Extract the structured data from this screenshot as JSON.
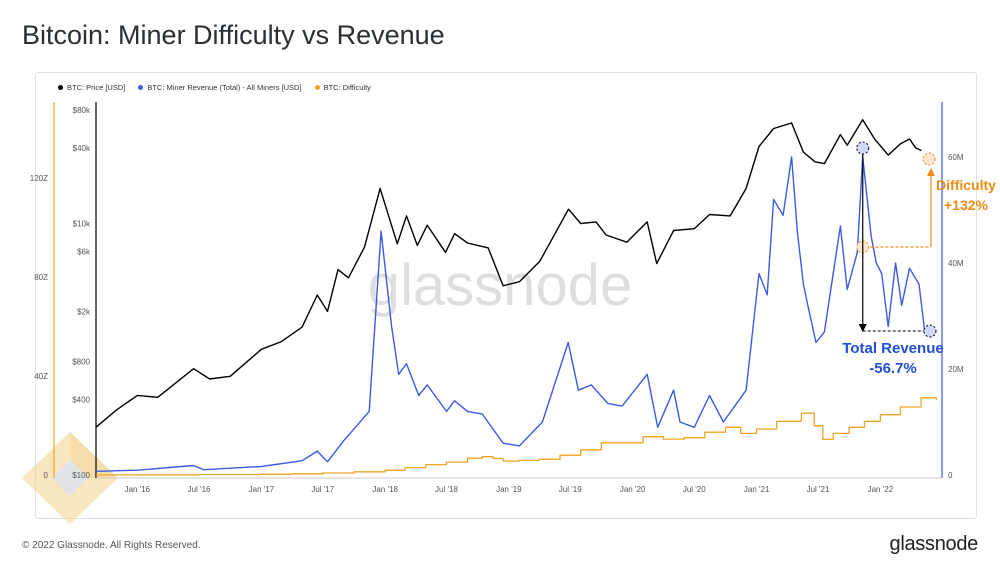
{
  "page": {
    "title": "Bitcoin: Miner Difficulty vs Revenue",
    "copyright": "© 2022 Glassnode. All Rights Reserved.",
    "logo": "glassnode",
    "watermark": "glassnode"
  },
  "legend": [
    {
      "label": "BTC: Price [USD]",
      "color": "#000000"
    },
    {
      "label": "BTC: Miner Revenue (Total) - All Miners [USD]",
      "color": "#3b5be0"
    },
    {
      "label": "BTC: Difficulty",
      "color": "#f0a524"
    }
  ],
  "colors": {
    "price": "#000000",
    "revenue": "#3b5be0",
    "difficulty": "#f0a524",
    "annotation_orange": "#f08a16",
    "annotation_blue": "#1f4fd8"
  },
  "annotations": {
    "difficulty_label": "Difficulty",
    "difficulty_change": "+132%",
    "revenue_label": "Total Revenue",
    "revenue_change": "-56.7%"
  },
  "chart_data": {
    "type": "line",
    "x_ticks": [
      "Jan '16",
      "Jul '16",
      "Jan '17",
      "Jul '17",
      "Jan '18",
      "Jul '18",
      "Jan '19",
      "Jul '19",
      "Jan '20",
      "Jul '20",
      "Jan '21",
      "Jul '21",
      "Jan '22"
    ],
    "x_range": [
      "2015-09-01",
      "2022-06-20"
    ],
    "y_left_difficulty": {
      "ticks": [
        "0",
        "40Z",
        "80Z",
        "120Z"
      ],
      "tick_values": [
        0,
        40,
        80,
        120
      ],
      "unit": "Z",
      "range": [
        0,
        150
      ]
    },
    "y_left_price": {
      "ticks": [
        "$100",
        "$400",
        "$800",
        "$2k",
        "$6k",
        "$10k",
        "$40k",
        "$80k"
      ],
      "tick_values": [
        100,
        400,
        800,
        2000,
        6000,
        10000,
        40000,
        80000
      ],
      "scale": "log",
      "range": [
        100,
        80000
      ]
    },
    "y_right_revenue": {
      "ticks": [
        "0",
        "20M",
        "40M",
        "60M"
      ],
      "tick_values": [
        0,
        20,
        40,
        60
      ],
      "unit": "M",
      "range": [
        0,
        70
      ]
    },
    "series": [
      {
        "name": "BTC: Price [USD]",
        "axis": "price",
        "points": [
          [
            "2015-09-01",
            240
          ],
          [
            "2015-11-01",
            330
          ],
          [
            "2016-01-01",
            430
          ],
          [
            "2016-03-01",
            415
          ],
          [
            "2016-06-15",
            700
          ],
          [
            "2016-08-01",
            580
          ],
          [
            "2016-10-01",
            610
          ],
          [
            "2017-01-01",
            1000
          ],
          [
            "2017-03-01",
            1150
          ],
          [
            "2017-05-01",
            1500
          ],
          [
            "2017-06-15",
            2700
          ],
          [
            "2017-07-15",
            2000
          ],
          [
            "2017-08-15",
            4300
          ],
          [
            "2017-09-15",
            3700
          ],
          [
            "2017-11-01",
            6500
          ],
          [
            "2017-12-17",
            19000
          ],
          [
            "2018-02-06",
            6900
          ],
          [
            "2018-03-05",
            11500
          ],
          [
            "2018-04-06",
            6700
          ],
          [
            "2018-05-05",
            9700
          ],
          [
            "2018-06-28",
            5900
          ],
          [
            "2018-07-25",
            8300
          ],
          [
            "2018-09-01",
            7000
          ],
          [
            "2018-11-01",
            6400
          ],
          [
            "2018-12-15",
            3200
          ],
          [
            "2019-02-01",
            3450
          ],
          [
            "2019-04-02",
            5000
          ],
          [
            "2019-06-26",
            13000
          ],
          [
            "2019-08-01",
            10000
          ],
          [
            "2019-09-15",
            10300
          ],
          [
            "2019-10-15",
            8100
          ],
          [
            "2019-12-15",
            7100
          ],
          [
            "2020-02-13",
            10300
          ],
          [
            "2020-03-12",
            4800
          ],
          [
            "2020-05-01",
            8800
          ],
          [
            "2020-07-01",
            9100
          ],
          [
            "2020-08-15",
            11800
          ],
          [
            "2020-10-15",
            11500
          ],
          [
            "2020-12-01",
            19000
          ],
          [
            "2021-01-08",
            41000
          ],
          [
            "2021-02-20",
            57000
          ],
          [
            "2021-04-14",
            63000
          ],
          [
            "2021-05-19",
            37000
          ],
          [
            "2021-06-22",
            31000
          ],
          [
            "2021-07-20",
            30000
          ],
          [
            "2021-09-05",
            51000
          ],
          [
            "2021-09-25",
            42000
          ],
          [
            "2021-11-10",
            67000
          ],
          [
            "2021-12-15",
            47000
          ],
          [
            "2022-01-24",
            35000
          ],
          [
            "2022-03-01",
            43000
          ],
          [
            "2022-03-28",
            47000
          ],
          [
            "2022-04-15",
            40000
          ],
          [
            "2022-05-02",
            38000
          ]
        ]
      },
      {
        "name": "BTC: Miner Revenue (Total) - All Miners [USD]",
        "axis": "revenue",
        "points": [
          [
            "2015-09-01",
            0.7
          ],
          [
            "2016-01-01",
            0.9
          ],
          [
            "2016-06-15",
            1.8
          ],
          [
            "2016-07-15",
            1.0
          ],
          [
            "2017-01-01",
            1.6
          ],
          [
            "2017-05-01",
            2.7
          ],
          [
            "2017-06-15",
            4.5
          ],
          [
            "2017-07-15",
            2.5
          ],
          [
            "2017-09-01",
            6.5
          ],
          [
            "2017-11-15",
            12
          ],
          [
            "2017-12-20",
            46
          ],
          [
            "2018-01-20",
            28
          ],
          [
            "2018-02-10",
            19
          ],
          [
            "2018-03-05",
            21
          ],
          [
            "2018-04-10",
            15
          ],
          [
            "2018-05-05",
            17
          ],
          [
            "2018-07-01",
            12
          ],
          [
            "2018-07-25",
            14
          ],
          [
            "2018-09-01",
            12
          ],
          [
            "2018-10-15",
            11.5
          ],
          [
            "2018-12-15",
            6
          ],
          [
            "2019-02-01",
            5.5
          ],
          [
            "2019-04-10",
            10
          ],
          [
            "2019-06-25",
            25
          ],
          [
            "2019-07-25",
            16
          ],
          [
            "2019-09-01",
            17
          ],
          [
            "2019-10-20",
            13.5
          ],
          [
            "2019-12-01",
            13
          ],
          [
            "2020-02-13",
            19
          ],
          [
            "2020-03-15",
            9
          ],
          [
            "2020-05-01",
            16
          ],
          [
            "2020-05-20",
            10
          ],
          [
            "2020-07-01",
            9
          ],
          [
            "2020-08-15",
            15
          ],
          [
            "2020-09-25",
            10
          ],
          [
            "2020-12-01",
            16
          ],
          [
            "2021-01-08",
            38
          ],
          [
            "2021-02-01",
            34
          ],
          [
            "2021-02-20",
            52
          ],
          [
            "2021-03-20",
            49
          ],
          [
            "2021-04-14",
            60
          ],
          [
            "2021-05-01",
            46
          ],
          [
            "2021-05-19",
            36
          ],
          [
            "2021-06-01",
            32
          ],
          [
            "2021-06-25",
            25
          ],
          [
            "2021-07-20",
            27
          ],
          [
            "2021-09-05",
            47
          ],
          [
            "2021-09-25",
            35
          ],
          [
            "2021-10-25",
            42
          ],
          [
            "2021-11-10",
            60
          ],
          [
            "2021-12-05",
            45
          ],
          [
            "2021-12-20",
            40
          ],
          [
            "2022-01-05",
            38
          ],
          [
            "2022-01-24",
            28
          ],
          [
            "2022-02-15",
            40
          ],
          [
            "2022-03-05",
            32
          ],
          [
            "2022-03-28",
            39
          ],
          [
            "2022-04-25",
            36
          ],
          [
            "2022-05-12",
            27
          ],
          [
            "2022-06-01",
            26
          ]
        ]
      },
      {
        "name": "BTC: Difficulty",
        "axis": "difficulty",
        "points": [
          [
            "2015-09-01",
            0.06
          ],
          [
            "2016-01-01",
            0.1
          ],
          [
            "2016-07-01",
            0.21
          ],
          [
            "2017-01-01",
            0.32
          ],
          [
            "2017-04-01",
            0.5
          ],
          [
            "2017-07-01",
            0.8
          ],
          [
            "2017-10-01",
            1.3
          ],
          [
            "2018-01-01",
            1.9
          ],
          [
            "2018-03-01",
            3.0
          ],
          [
            "2018-05-01",
            4.2
          ],
          [
            "2018-07-01",
            5.2
          ],
          [
            "2018-09-01",
            6.8
          ],
          [
            "2018-10-15",
            7.4
          ],
          [
            "2018-11-15",
            6.7
          ],
          [
            "2018-12-15",
            5.6
          ],
          [
            "2019-02-01",
            5.9
          ],
          [
            "2019-04-01",
            6.4
          ],
          [
            "2019-06-01",
            8.0
          ],
          [
            "2019-08-01",
            10.2
          ],
          [
            "2019-10-01",
            13.0
          ],
          [
            "2019-12-01",
            13.0
          ],
          [
            "2020-02-01",
            15.5
          ],
          [
            "2020-04-01",
            14.5
          ],
          [
            "2020-06-01",
            15.1
          ],
          [
            "2020-08-01",
            17.3
          ],
          [
            "2020-10-01",
            19.3
          ],
          [
            "2020-11-15",
            16.8
          ],
          [
            "2021-01-01",
            18.6
          ],
          [
            "2021-03-01",
            21.7
          ],
          [
            "2021-05-13",
            25.0
          ],
          [
            "2021-06-20",
            19.9
          ],
          [
            "2021-07-15",
            14.4
          ],
          [
            "2021-08-15",
            16.8
          ],
          [
            "2021-10-01",
            19.3
          ],
          [
            "2021-11-15",
            21.7
          ],
          [
            "2022-01-01",
            24.4
          ],
          [
            "2022-03-01",
            27.5
          ],
          [
            "2022-05-01",
            31.2
          ],
          [
            "2022-06-15",
            30.3
          ]
        ]
      }
    ]
  }
}
